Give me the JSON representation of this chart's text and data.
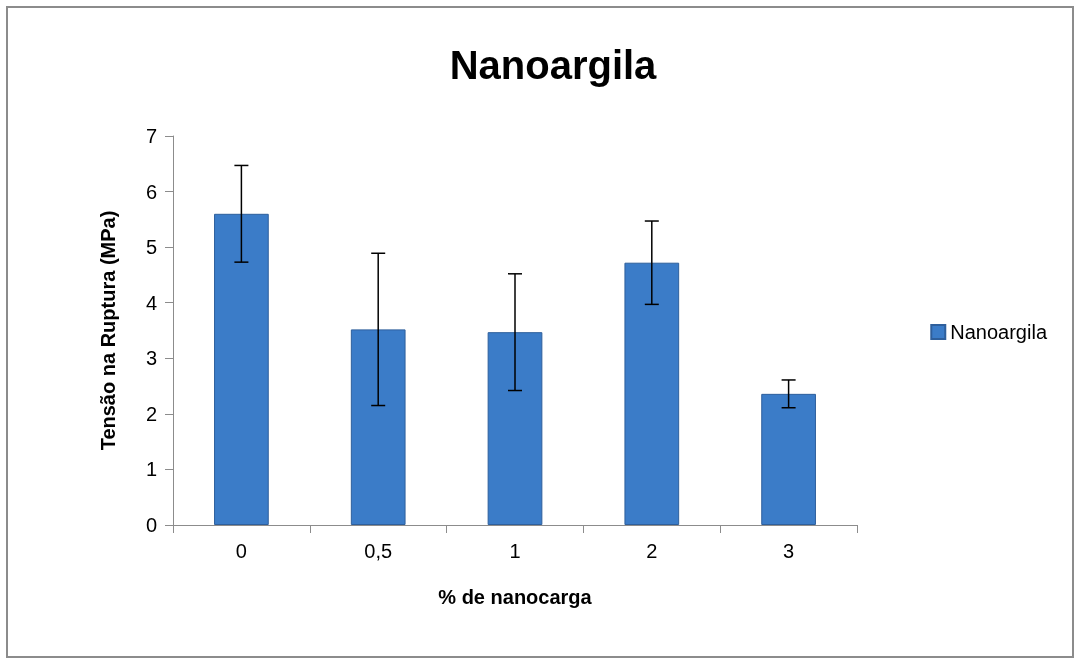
{
  "chart_data": {
    "type": "bar",
    "title": "Nanoargila",
    "xlabel": "% de nanocarga",
    "ylabel": "Tensão na Ruptura (MPa)",
    "categories": [
      "0",
      "0,5",
      "1",
      "2",
      "3"
    ],
    "series": [
      {
        "name": "Nanoargila",
        "color": "#3b7cc8",
        "values": [
          5.6,
          3.52,
          3.47,
          4.72,
          2.36
        ],
        "errors": [
          0.87,
          1.37,
          1.05,
          0.75,
          0.25
        ]
      }
    ],
    "ylim": [
      0,
      7
    ],
    "yticks": [
      0,
      1,
      2,
      3,
      4,
      5,
      6,
      7
    ],
    "grid": false,
    "legend": "right"
  }
}
